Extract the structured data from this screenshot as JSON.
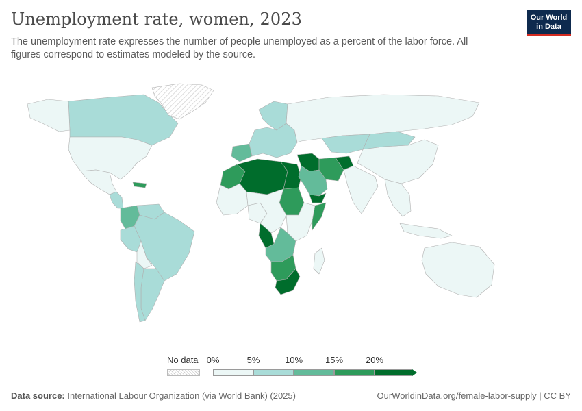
{
  "header": {
    "title": "Unemployment rate, women, 2023",
    "subtitle": "The unemployment rate expresses the number of people unemployed as a percent of the labor force. All figures correspond to estimates modeled by the source."
  },
  "logo": {
    "line1": "Our World",
    "line2": "in Data",
    "bg_color": "#0e2a4e",
    "accent_color": "#d42b21"
  },
  "legend": {
    "no_data_label": "No data",
    "ticks": [
      "0%",
      "5%",
      "10%",
      "15%",
      "20%"
    ],
    "colors": [
      "#ecf7f6",
      "#a9dcd8",
      "#63bb9a",
      "#2e9b5b",
      "#006d2c"
    ]
  },
  "footer": {
    "source_label": "Data source:",
    "source_text": "International Labour Organization (via World Bank) (2025)",
    "right_text": "OurWorldinData.org/female-labor-supply | CC BY"
  },
  "map_data": {
    "type": "choropleth",
    "metric": "Unemployment rate, women, 2023",
    "unit": "%",
    "bins": [
      0,
      5,
      10,
      15,
      20
    ],
    "regions": [
      {
        "id": "canada",
        "bin": 1
      },
      {
        "id": "greenland",
        "bin": -1
      },
      {
        "id": "alaska",
        "bin": 0
      },
      {
        "id": "usa",
        "bin": 0
      },
      {
        "id": "mexico",
        "bin": 0
      },
      {
        "id": "central-america",
        "bin": 1
      },
      {
        "id": "caribbean",
        "bin": 3
      },
      {
        "id": "colombia",
        "bin": 2
      },
      {
        "id": "venezuela",
        "bin": 1
      },
      {
        "id": "brazil",
        "bin": 1
      },
      {
        "id": "peru",
        "bin": 1
      },
      {
        "id": "bolivia",
        "bin": 0
      },
      {
        "id": "argentina",
        "bin": 1
      },
      {
        "id": "chile",
        "bin": 1
      },
      {
        "id": "europe",
        "bin": 1
      },
      {
        "id": "iberia",
        "bin": 2
      },
      {
        "id": "scandinavia",
        "bin": 1
      },
      {
        "id": "russia",
        "bin": 0
      },
      {
        "id": "central-asia",
        "bin": 1
      },
      {
        "id": "china",
        "bin": 0
      },
      {
        "id": "mongolia",
        "bin": 1
      },
      {
        "id": "india",
        "bin": 0
      },
      {
        "id": "southeast-asia",
        "bin": 0
      },
      {
        "id": "indonesia",
        "bin": 0
      },
      {
        "id": "australia",
        "bin": 0
      },
      {
        "id": "morocco",
        "bin": 3
      },
      {
        "id": "algeria-libya",
        "bin": 4
      },
      {
        "id": "egypt",
        "bin": 4
      },
      {
        "id": "sudan",
        "bin": 3
      },
      {
        "id": "middle-east",
        "bin": 4
      },
      {
        "id": "saudi-arabia",
        "bin": 2
      },
      {
        "id": "yemen",
        "bin": 4
      },
      {
        "id": "iran",
        "bin": 3
      },
      {
        "id": "afghanistan",
        "bin": 4
      },
      {
        "id": "west-africa",
        "bin": 0
      },
      {
        "id": "nigeria",
        "bin": 0
      },
      {
        "id": "somalia",
        "bin": 3
      },
      {
        "id": "ethiopia-east-africa",
        "bin": 0
      },
      {
        "id": "central-africa",
        "bin": 0
      },
      {
        "id": "gabon-congo",
        "bin": 4
      },
      {
        "id": "angola-zambia",
        "bin": 2
      },
      {
        "id": "namibia-botswana",
        "bin": 3
      },
      {
        "id": "south-africa",
        "bin": 4
      },
      {
        "id": "madagascar",
        "bin": 0
      }
    ]
  }
}
